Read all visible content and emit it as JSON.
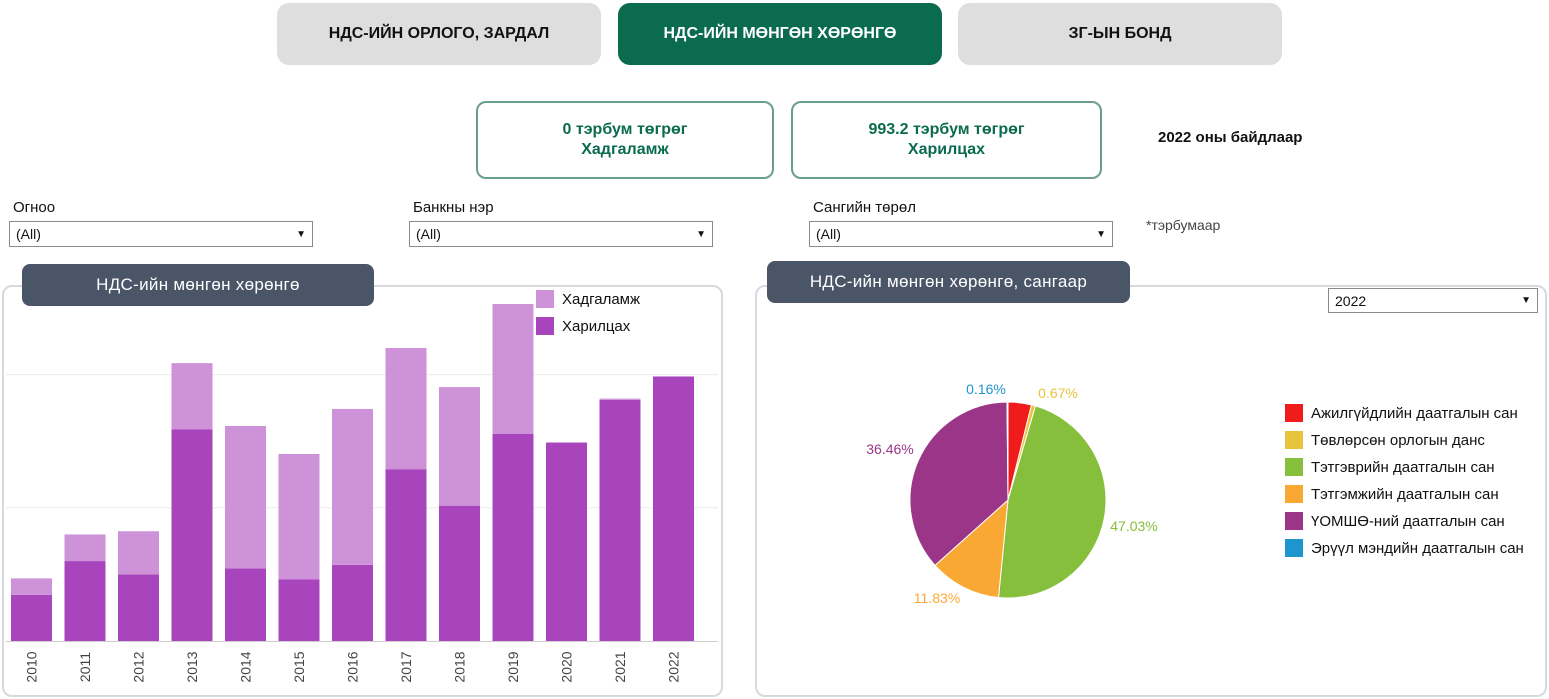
{
  "tabs": [
    {
      "label": "НДС-ИЙН ОРЛОГО, ЗАРДАЛ",
      "active": false
    },
    {
      "label": "НДС-ИЙН МӨНГӨН ХӨРӨНГӨ",
      "active": true
    },
    {
      "label": "ЗГ-ЫН БОНД",
      "active": false
    }
  ],
  "kpis": [
    {
      "value": "0 тэрбум төгрөг",
      "label": "Хадгаламж"
    },
    {
      "value": "993.2 тэрбум төгрөг",
      "label": "Харилцах"
    }
  ],
  "as_of": "2022 оны байдлаар",
  "unit_note": "*тэрбумаар",
  "filters": [
    {
      "label": "Огноо",
      "value": "(All)"
    },
    {
      "label": "Банкны нэр",
      "value": "(All)"
    },
    {
      "label": "Сангийн төрөл",
      "value": "(All)"
    }
  ],
  "bar_panel": {
    "title": "НДС-ийн мөнгөн хөрөнгө"
  },
  "pie_panel": {
    "title": "НДС-ийн мөнгөн хөрөнгө, сангаар",
    "year_select": "2022"
  },
  "colors": {
    "accent": "#0b6b4f",
    "deposit": "#cd92d8",
    "current": "#a845bc",
    "panel_title": "#4a5568"
  },
  "chart_data": [
    {
      "type": "bar",
      "stacked": true,
      "categories": [
        "2010",
        "2011",
        "2012",
        "2013",
        "2014",
        "2015",
        "2016",
        "2017",
        "2018",
        "2019",
        "2020",
        "2021",
        "2022"
      ],
      "series": [
        {
          "name": "Харилцах",
          "color": "#a845bc",
          "values": [
            173,
            300,
            250,
            795,
            272,
            232,
            286,
            645,
            508,
            778,
            745,
            905,
            993
          ]
        },
        {
          "name": "Хадгаламж",
          "color": "#cd92d8",
          "values": [
            62,
            100,
            162,
            248,
            535,
            470,
            585,
            455,
            445,
            487,
            0,
            5,
            0
          ]
        }
      ],
      "legend": [
        "Хадгаламж",
        "Харилцах"
      ],
      "legend_position": "top-right",
      "ylim": [
        0,
        1280
      ],
      "grid": true
    },
    {
      "type": "pie",
      "year": "2022",
      "slices": [
        {
          "label": "Ажилгүйдлийн даатгалын сан",
          "value": 3.85,
          "color": "#f01c1c",
          "data_label": ""
        },
        {
          "label": "Төвлөрсөн орлогын данс",
          "value": 0.67,
          "color": "#e8c43c",
          "data_label": "0.67%"
        },
        {
          "label": "Тэтгэврийн даатгалын сан",
          "value": 47.03,
          "color": "#86bf3c",
          "data_label": "47.03%"
        },
        {
          "label": "Тэтгэмжийн даатгалын сан",
          "value": 11.83,
          "color": "#f9a833",
          "data_label": "11.83%"
        },
        {
          "label": "ҮОМШӨ-ний даатгалын сан",
          "value": 36.46,
          "color": "#9b3587",
          "data_label": "36.46%"
        },
        {
          "label": "Эрүүл мэндийн даатгалын сан",
          "value": 0.16,
          "color": "#1f95cf",
          "data_label": "0.16%"
        }
      ],
      "legend_position": "right"
    }
  ]
}
